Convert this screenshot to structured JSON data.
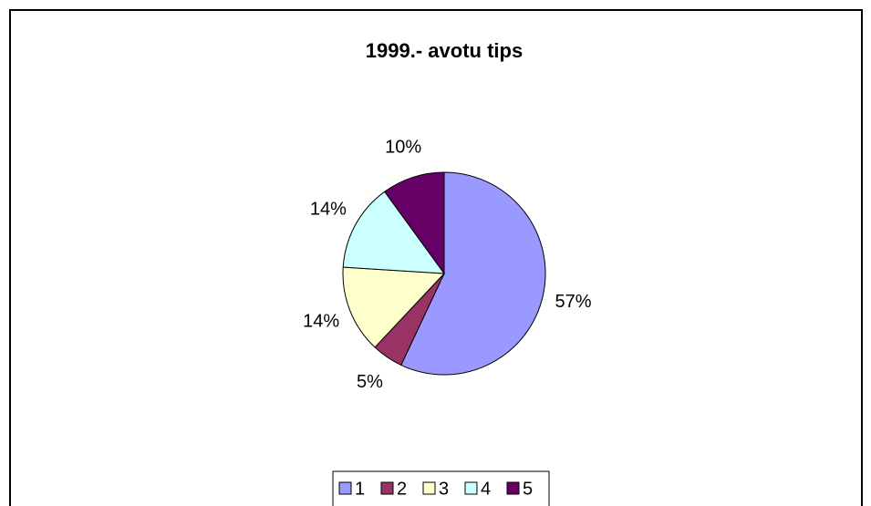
{
  "chart_data": {
    "type": "pie",
    "title": "1999.- avotu tips",
    "categories": [
      "1",
      "2",
      "3",
      "4",
      "5"
    ],
    "values": [
      57,
      5,
      14,
      14,
      10
    ],
    "value_labels": [
      "57%",
      "5%",
      "14%",
      "14%",
      "10%"
    ],
    "colors": [
      "#9999ff",
      "#993366",
      "#ffffcc",
      "#ccffff",
      "#660066"
    ],
    "legend": "bottom"
  }
}
